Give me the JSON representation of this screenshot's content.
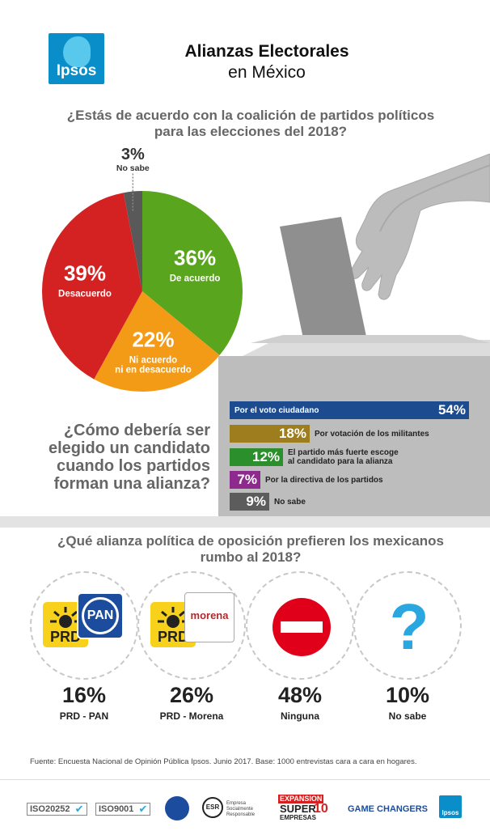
{
  "header": {
    "logo_text": "Ipsos",
    "title": "Alianzas Electorales",
    "subtitle": "en México"
  },
  "question1": "¿Estás de acuerdo con la coalición de partidos políticos\npara las elecciones del 2018?",
  "question2": "¿Cómo debería ser\nelegido un candidato\ncuando los partidos\nforman una alianza?",
  "question3": "¿Qué alianza política de oposición prefieren los mexicanos\nrumbo al 2018?",
  "chart_data": [
    {
      "type": "pie",
      "title": "¿Estás de acuerdo con la coalición de partidos políticos para las elecciones del 2018?",
      "slices": [
        {
          "label": "De acuerdo",
          "value": 36,
          "value_label": "36%",
          "color": "#5aa51e"
        },
        {
          "label": "Ni acuerdo\nni en desacuerdo",
          "value": 22,
          "value_label": "22%",
          "color": "#f39a17"
        },
        {
          "label": "Desacuerdo",
          "value": 39,
          "value_label": "39%",
          "color": "#d42222"
        },
        {
          "label": "No sabe",
          "value": 3,
          "value_label": "3%",
          "color": "#595959"
        }
      ]
    },
    {
      "type": "bar",
      "orientation": "horizontal",
      "title": "¿Cómo debería ser elegido un candidato cuando los partidos forman una alianza?",
      "xlim": [
        0,
        54
      ],
      "bars": [
        {
          "label": "Por el voto ciudadano",
          "value": 54,
          "value_label": "54%",
          "color": "#1c4c8f"
        },
        {
          "label": "Por votación de los militantes",
          "value": 18,
          "value_label": "18%",
          "color": "#9e7d1f"
        },
        {
          "label": "El partido más fuerte escoge\nal candidato para la alianza",
          "value": 12,
          "value_label": "12%",
          "color": "#2b8f2b"
        },
        {
          "label": "Por la directiva de los partidos",
          "value": 7,
          "value_label": "7%",
          "color": "#8e2a8e"
        },
        {
          "label": "No sabe",
          "value": 9,
          "value_label": "9%",
          "color": "#5c5c5c"
        }
      ]
    },
    {
      "type": "bar",
      "title": "¿Qué alianza política de oposición prefieren los mexicanos rumbo al 2018?",
      "categories": [
        "PRD - PAN",
        "PRD - Morena",
        "Ninguna",
        "No sabe"
      ],
      "values": [
        16,
        26,
        48,
        10
      ],
      "value_labels": [
        "16%",
        "26%",
        "48%",
        "10%"
      ]
    }
  ],
  "alliance_logos": {
    "prd": "PRD",
    "pan": "PAN",
    "morena": "morena",
    "icons": [
      "prd-pan-logo",
      "prd-morena-logo",
      "no-entry-icon",
      "question-mark-icon"
    ],
    "question_mark": "?"
  },
  "source": "Fuente: Encuesta Nacional de Opinión Pública Ipsos. Junio 2017. Base: 1000 entrevistas cara a cara en hogares.",
  "footer": {
    "iso1": "ISO20252",
    "iso2": "ISO9001",
    "esr_mark": "ESR",
    "esr_text": "Empresa\nSocialmente\nResponsable",
    "expansion": "EXPANSION",
    "super": "SUPER",
    "ten": "10",
    "empresas": "EMPRESAS",
    "game_changers": "GAME CHANGERS",
    "mini_logo": "Ipsos"
  }
}
